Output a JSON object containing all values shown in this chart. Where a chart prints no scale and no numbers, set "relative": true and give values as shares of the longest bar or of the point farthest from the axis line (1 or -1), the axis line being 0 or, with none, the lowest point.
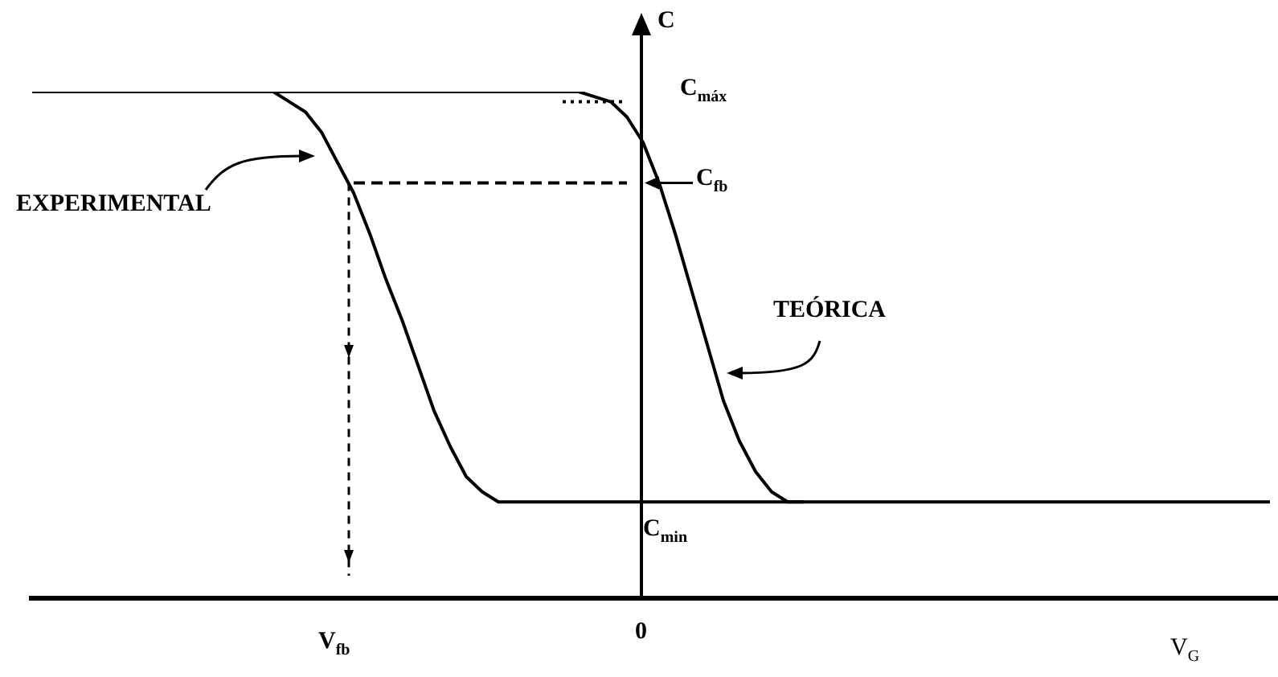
{
  "chart_data": {
    "type": "line",
    "relative": true,
    "legend": false,
    "marker": "none",
    "categories": [
      null,
      null,
      null,
      null,
      null,
      null,
      null,
      null,
      null,
      null,
      null,
      null,
      null,
      null,
      null,
      null,
      null,
      null,
      null,
      null,
      null,
      null,
      null,
      null,
      null,
      null,
      null,
      null,
      null,
      null,
      null,
      null,
      null,
      null,
      null,
      null,
      null,
      null,
      null,
      null,
      null,
      null,
      null,
      null,
      null,
      null,
      null,
      null,
      null,
      null,
      null,
      null,
      null,
      null,
      null,
      null,
      null,
      null,
      null,
      null,
      null,
      null,
      null,
      null,
      null,
      null,
      null,
      null,
      null,
      null,
      null,
      null,
      null,
      null,
      null,
      null,
      null,
      null
    ],
    "series": [
      {
        "color": "#000000",
        "line_style": "solid",
        "values": [
          1,
          1,
          1,
          1,
          1,
          1,
          1,
          1,
          1,
          1,
          1,
          1,
          1,
          1,
          1,
          1.0,
          0.98,
          0.96,
          0.92,
          0.86,
          0.8,
          0.72,
          0.63,
          0.55,
          0.46,
          0.37,
          0.3,
          0.24,
          0.21,
          0.19,
          0.19,
          0.19,
          0.19,
          0.19,
          0.19,
          0.19,
          0.19,
          0.19,
          0.19,
          0.19,
          0.19,
          0.19,
          0.19,
          0.19,
          0.19,
          0.19,
          0.19,
          0.19,
          0.19,
          null,
          null,
          null,
          null,
          null,
          null,
          null,
          null,
          null,
          null,
          null,
          null,
          null,
          null,
          null,
          null,
          null,
          null,
          null,
          null,
          null,
          null,
          null,
          null,
          null,
          null,
          null,
          null,
          null
        ]
      },
      {
        "color": "#000000",
        "line_style": "solid",
        "values": [
          null,
          null,
          null,
          null,
          null,
          null,
          null,
          null,
          null,
          null,
          null,
          null,
          null,
          1,
          1,
          1,
          1,
          1,
          1,
          1,
          1,
          1,
          1,
          1,
          1,
          1,
          1,
          1,
          1,
          1,
          1,
          1,
          1,
          1,
          1.0,
          0.99,
          0.98,
          0.95,
          0.9,
          0.82,
          0.72,
          0.61,
          0.5,
          0.39,
          0.31,
          0.25,
          0.21,
          0.19,
          0.19,
          0.19,
          0.19,
          0.19,
          0.19,
          0.19,
          0.19,
          0.19,
          0.19,
          0.19,
          0.19,
          0.19,
          0.19,
          0.19,
          0.19,
          0.19,
          0.19,
          0.19,
          0.19,
          0.19,
          0.19,
          0.19,
          0.19,
          0.19,
          0.19,
          0.19,
          0.19,
          0.19,
          0.19,
          0.19
        ]
      },
      {
        "color": "#000000",
        "line_style": "dotted",
        "values": [
          null,
          null,
          null,
          null,
          null,
          null,
          null,
          null,
          null,
          null,
          null,
          null,
          null,
          null,
          null,
          null,
          null,
          null,
          null,
          null,
          null,
          null,
          null,
          null,
          null,
          null,
          null,
          null,
          null,
          null,
          null,
          null,
          null,
          0.98,
          0.98,
          0.98,
          0.98,
          0.98,
          null,
          null,
          null,
          null,
          null,
          null,
          null,
          null,
          null,
          null,
          null,
          null,
          null,
          null,
          null,
          null,
          null,
          null,
          null,
          null,
          null,
          null,
          null,
          null,
          null,
          null,
          null,
          null,
          null,
          null,
          null,
          null,
          null,
          null,
          null,
          null,
          null,
          null,
          null,
          null
        ]
      },
      {
        "color": "#000000",
        "line_style": "dashed",
        "values": [
          null,
          null,
          null,
          null,
          null,
          null,
          null,
          null,
          null,
          null,
          null,
          null,
          null,
          null,
          null,
          null,
          null,
          null,
          null,
          null,
          0.82,
          0.82,
          0.82,
          0.82,
          0.82,
          0.82,
          0.82,
          0.82,
          0.82,
          0.82,
          0.82,
          0.82,
          0.82,
          0.82,
          0.82,
          0.82,
          0.82,
          0.82,
          null,
          null,
          null,
          null,
          null,
          null,
          null,
          null,
          null,
          null,
          null,
          null,
          null,
          null,
          null,
          null,
          null,
          null,
          null,
          null,
          null,
          null,
          null,
          null,
          null,
          null,
          null,
          null,
          null,
          null,
          null,
          null,
          null,
          null,
          null,
          null,
          null,
          null,
          null,
          null
        ]
      }
    ],
    "annotations": [
      "C",
      "C$_{máx}$",
      "C$_{fb}$",
      "EXPERIMENTAL",
      "TEÓRICA",
      "C$_{min}$",
      "V$_{fb}$",
      "0",
      "V$_{G}$"
    ]
  }
}
